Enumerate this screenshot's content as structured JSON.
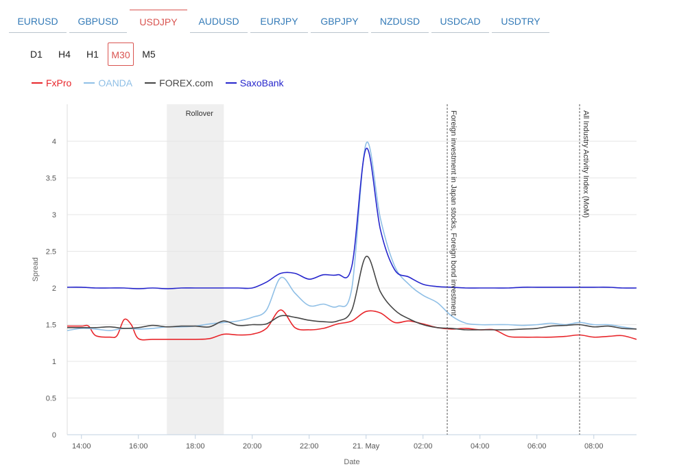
{
  "pairs": [
    "EURUSD",
    "GBPUSD",
    "USDJPY",
    "AUDUSD",
    "EURJPY",
    "GBPJPY",
    "NZDUSD",
    "USDCAD",
    "USDTRY"
  ],
  "active_pair": "USDJPY",
  "timeframes": [
    "D1",
    "H4",
    "H1",
    "M30",
    "M5"
  ],
  "active_timeframe": "M30",
  "chart_data": {
    "type": "line",
    "xlabel": "Date",
    "ylabel": "Spread",
    "xlim": [
      13.5,
      33.5
    ],
    "ylim": [
      0,
      4.5
    ],
    "yticks": [
      0,
      0.5,
      1,
      1.5,
      2,
      2.5,
      3,
      3.5,
      4
    ],
    "xticks": [
      {
        "x": 14,
        "label": "14:00"
      },
      {
        "x": 16,
        "label": "16:00"
      },
      {
        "x": 18,
        "label": "18:00"
      },
      {
        "x": 20,
        "label": "20:00"
      },
      {
        "x": 22,
        "label": "22:00"
      },
      {
        "x": 24,
        "label": "21. May"
      },
      {
        "x": 26,
        "label": "02:00"
      },
      {
        "x": 28,
        "label": "04:00"
      },
      {
        "x": 30,
        "label": "06:00"
      },
      {
        "x": 32,
        "label": "08:00"
      }
    ],
    "grid": "horizontal",
    "legend_position": "top-left",
    "band": {
      "from": 17,
      "to": 19,
      "label": "Rollover"
    },
    "vlines": [
      {
        "x": 26.85,
        "label": "Foreign investment in Japan stocks, Foreign bond investment"
      },
      {
        "x": 31.5,
        "label": "All Industry Activity Index (MoM)"
      }
    ],
    "series": [
      {
        "name": "FxPro",
        "color": "#e8252a",
        "points": [
          [
            13.5,
            1.48
          ],
          [
            14.0,
            1.48
          ],
          [
            14.25,
            1.48
          ],
          [
            14.5,
            1.35
          ],
          [
            15.0,
            1.33
          ],
          [
            15.25,
            1.35
          ],
          [
            15.5,
            1.57
          ],
          [
            15.75,
            1.5
          ],
          [
            16.0,
            1.31
          ],
          [
            16.5,
            1.3
          ],
          [
            17.0,
            1.3
          ],
          [
            17.5,
            1.3
          ],
          [
            18.0,
            1.3
          ],
          [
            18.5,
            1.31
          ],
          [
            19.0,
            1.37
          ],
          [
            19.5,
            1.36
          ],
          [
            20.0,
            1.37
          ],
          [
            20.5,
            1.45
          ],
          [
            21.0,
            1.7
          ],
          [
            21.5,
            1.46
          ],
          [
            22.0,
            1.43
          ],
          [
            22.5,
            1.45
          ],
          [
            23.0,
            1.51
          ],
          [
            23.5,
            1.55
          ],
          [
            24.0,
            1.68
          ],
          [
            24.5,
            1.66
          ],
          [
            25.0,
            1.53
          ],
          [
            25.5,
            1.55
          ],
          [
            26.0,
            1.51
          ],
          [
            26.5,
            1.46
          ],
          [
            27.0,
            1.44
          ],
          [
            27.5,
            1.45
          ],
          [
            28.0,
            1.43
          ],
          [
            28.5,
            1.43
          ],
          [
            29.0,
            1.34
          ],
          [
            29.5,
            1.33
          ],
          [
            30.0,
            1.33
          ],
          [
            30.5,
            1.33
          ],
          [
            31.0,
            1.34
          ],
          [
            31.5,
            1.36
          ],
          [
            32.0,
            1.33
          ],
          [
            32.5,
            1.34
          ],
          [
            33.0,
            1.35
          ],
          [
            33.5,
            1.3
          ]
        ]
      },
      {
        "name": "OANDA",
        "color": "#8fbfe6",
        "points": [
          [
            13.5,
            1.42
          ],
          [
            14.0,
            1.45
          ],
          [
            14.5,
            1.44
          ],
          [
            15.0,
            1.42
          ],
          [
            15.5,
            1.45
          ],
          [
            16.0,
            1.44
          ],
          [
            16.5,
            1.45
          ],
          [
            17.0,
            1.47
          ],
          [
            17.5,
            1.47
          ],
          [
            18.0,
            1.48
          ],
          [
            18.5,
            1.51
          ],
          [
            19.0,
            1.53
          ],
          [
            19.5,
            1.55
          ],
          [
            20.0,
            1.6
          ],
          [
            20.5,
            1.7
          ],
          [
            21.0,
            2.14
          ],
          [
            21.5,
            1.93
          ],
          [
            22.0,
            1.76
          ],
          [
            22.5,
            1.78
          ],
          [
            23.0,
            1.75
          ],
          [
            23.5,
            2.0
          ],
          [
            24.0,
            3.97
          ],
          [
            24.5,
            2.95
          ],
          [
            25.0,
            2.3
          ],
          [
            25.5,
            2.05
          ],
          [
            26.0,
            1.9
          ],
          [
            26.5,
            1.8
          ],
          [
            27.0,
            1.62
          ],
          [
            27.5,
            1.52
          ],
          [
            28.0,
            1.5
          ],
          [
            28.5,
            1.5
          ],
          [
            29.0,
            1.5
          ],
          [
            29.5,
            1.49
          ],
          [
            30.0,
            1.5
          ],
          [
            30.5,
            1.52
          ],
          [
            31.0,
            1.5
          ],
          [
            31.5,
            1.53
          ],
          [
            32.0,
            1.5
          ],
          [
            32.5,
            1.5
          ],
          [
            33.0,
            1.47
          ],
          [
            33.5,
            1.44
          ]
        ]
      },
      {
        "name": "FOREX.com",
        "color": "#444444",
        "points": [
          [
            13.5,
            1.46
          ],
          [
            14.0,
            1.46
          ],
          [
            14.5,
            1.46
          ],
          [
            15.0,
            1.47
          ],
          [
            15.5,
            1.45
          ],
          [
            16.0,
            1.46
          ],
          [
            16.5,
            1.49
          ],
          [
            17.0,
            1.47
          ],
          [
            17.5,
            1.48
          ],
          [
            18.0,
            1.48
          ],
          [
            18.5,
            1.47
          ],
          [
            19.0,
            1.55
          ],
          [
            19.5,
            1.49
          ],
          [
            20.0,
            1.5
          ],
          [
            20.5,
            1.51
          ],
          [
            21.0,
            1.62
          ],
          [
            21.5,
            1.6
          ],
          [
            22.0,
            1.56
          ],
          [
            22.5,
            1.54
          ],
          [
            23.0,
            1.55
          ],
          [
            23.5,
            1.7
          ],
          [
            24.0,
            2.43
          ],
          [
            24.5,
            1.95
          ],
          [
            25.0,
            1.7
          ],
          [
            25.5,
            1.58
          ],
          [
            26.0,
            1.5
          ],
          [
            26.5,
            1.46
          ],
          [
            27.0,
            1.45
          ],
          [
            27.5,
            1.43
          ],
          [
            28.0,
            1.43
          ],
          [
            28.5,
            1.43
          ],
          [
            29.0,
            1.43
          ],
          [
            29.5,
            1.44
          ],
          [
            30.0,
            1.45
          ],
          [
            30.5,
            1.48
          ],
          [
            31.0,
            1.49
          ],
          [
            31.5,
            1.5
          ],
          [
            32.0,
            1.47
          ],
          [
            32.5,
            1.48
          ],
          [
            33.0,
            1.45
          ],
          [
            33.5,
            1.44
          ]
        ]
      },
      {
        "name": "SaxoBank",
        "color": "#2525cc",
        "points": [
          [
            13.5,
            2.01
          ],
          [
            14.0,
            2.01
          ],
          [
            14.5,
            2.0
          ],
          [
            15.0,
            2.0
          ],
          [
            15.5,
            2.0
          ],
          [
            16.0,
            1.99
          ],
          [
            16.5,
            2.0
          ],
          [
            17.0,
            1.99
          ],
          [
            17.5,
            2.0
          ],
          [
            18.0,
            2.0
          ],
          [
            18.5,
            2.0
          ],
          [
            19.0,
            2.0
          ],
          [
            19.5,
            2.0
          ],
          [
            20.0,
            2.0
          ],
          [
            20.5,
            2.08
          ],
          [
            21.0,
            2.2
          ],
          [
            21.5,
            2.2
          ],
          [
            22.0,
            2.12
          ],
          [
            22.5,
            2.18
          ],
          [
            23.0,
            2.18
          ],
          [
            23.5,
            2.3
          ],
          [
            24.0,
            3.9
          ],
          [
            24.5,
            2.8
          ],
          [
            25.0,
            2.25
          ],
          [
            25.5,
            2.15
          ],
          [
            26.0,
            2.05
          ],
          [
            26.5,
            2.02
          ],
          [
            27.0,
            2.01
          ],
          [
            27.5,
            2.0
          ],
          [
            28.0,
            2.0
          ],
          [
            28.5,
            2.0
          ],
          [
            29.0,
            2.0
          ],
          [
            29.5,
            2.01
          ],
          [
            30.0,
            2.01
          ],
          [
            30.5,
            2.01
          ],
          [
            31.0,
            2.01
          ],
          [
            31.5,
            2.01
          ],
          [
            32.0,
            2.01
          ],
          [
            32.5,
            2.01
          ],
          [
            33.0,
            2.0
          ],
          [
            33.5,
            2.0
          ]
        ]
      }
    ]
  }
}
